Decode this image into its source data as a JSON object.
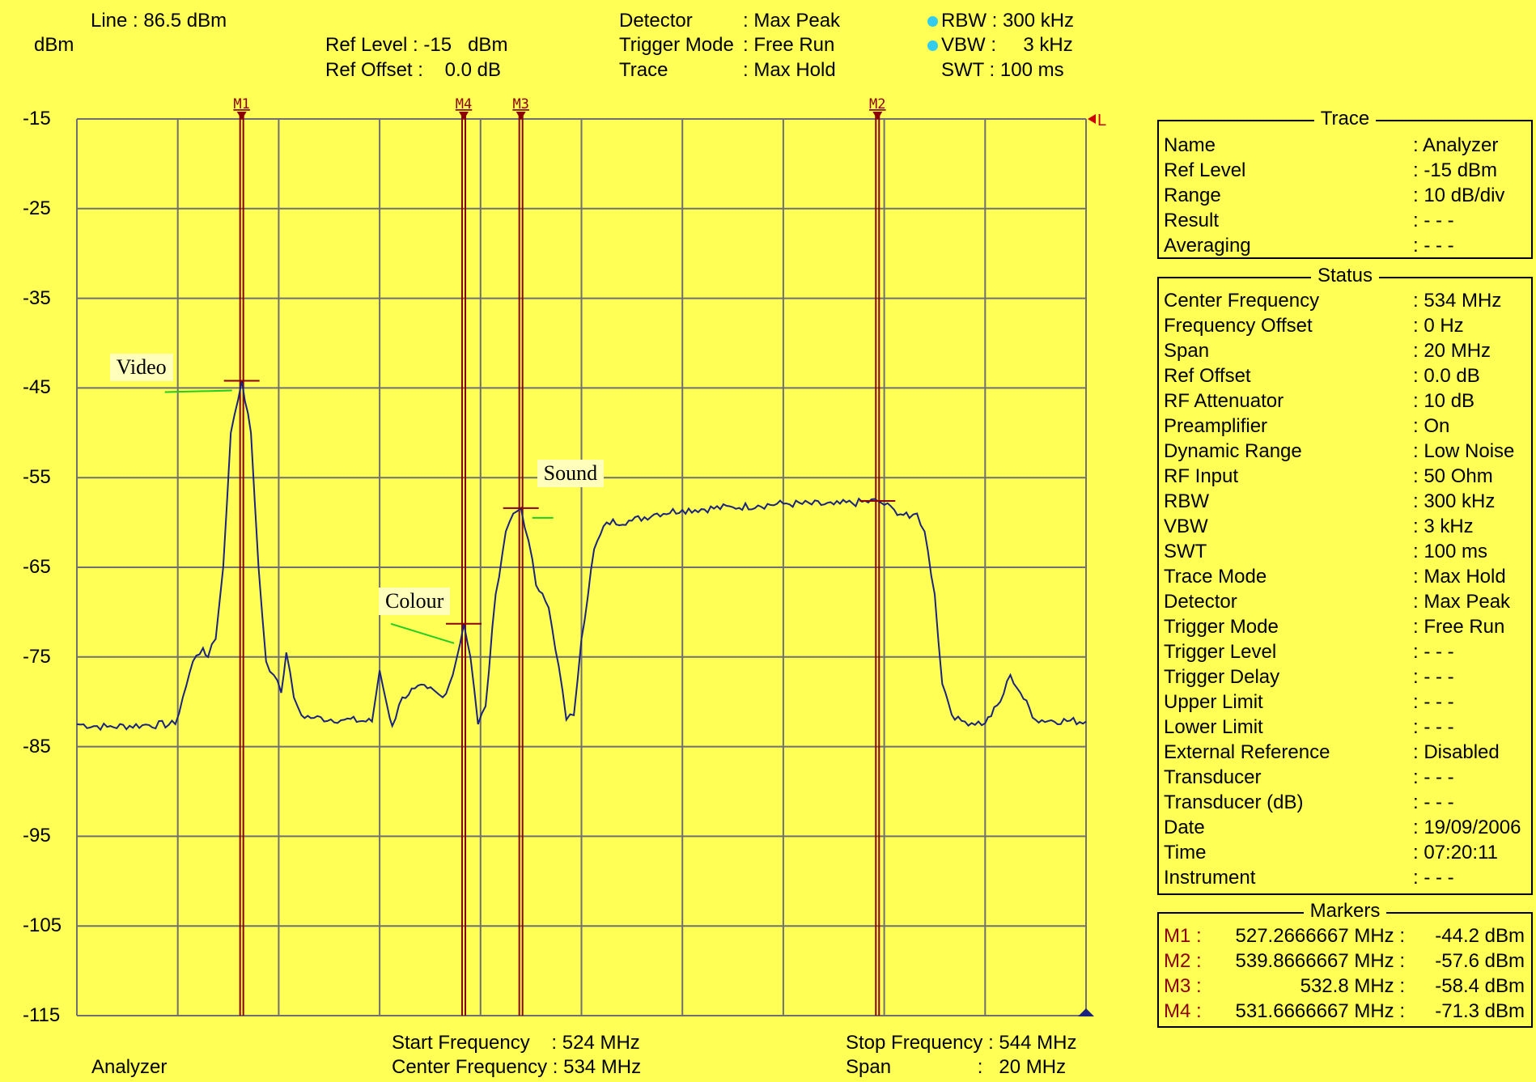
{
  "header": {
    "line_text": "Line : 86.5 dBm",
    "unit_label": "dBm",
    "ref_level": "Ref Level : -15   dBm",
    "ref_offset": "Ref Offset :    0.0 dB",
    "detector_key": "Detector",
    "detector_val": ": Max Peak",
    "trigger_key": "Trigger Mode",
    "trigger_val": ": Free Run",
    "trace_key": "Trace",
    "trace_val": ": Max Hold",
    "rbw": "RBW : 300 kHz",
    "vbw": "VBW :     3 kHz",
    "swt": "SWT : 100 ms"
  },
  "footer": {
    "analyzer_label": "Analyzer",
    "start_freq": "Start Frequency    : 524 MHz",
    "center_freq": "Center Frequency : 534 MHz",
    "stop_freq": "Stop Frequency : 544 MHz",
    "span": "Span                :   20 MHz"
  },
  "trace_panel": {
    "title": "Trace",
    "rows": [
      {
        "k": "Name",
        "v": ": Analyzer"
      },
      {
        "k": "Ref Level",
        "v": ":  -15     dBm"
      },
      {
        "k": "Range",
        "v": ": 10 dB/div"
      },
      {
        "k": "Result",
        "v": ": - - -"
      },
      {
        "k": "Averaging",
        "v": ": - - -"
      }
    ]
  },
  "status_panel": {
    "title": "Status",
    "rows": [
      {
        "k": "Center Frequency",
        "v": ": 534     MHz"
      },
      {
        "k": "Frequency Offset",
        "v": ":    0        Hz"
      },
      {
        "k": "Span",
        "v": ":   20      MHz"
      },
      {
        "k": "Ref Offset",
        "v": ":    0.0    dB"
      },
      {
        "k": "RF Attenuator",
        "v": ":   10       dB"
      },
      {
        "k": "Preamplifier",
        "v": ": On"
      },
      {
        "k": "Dynamic Range",
        "v": ": Low Noise"
      },
      {
        "k": "RF Input",
        "v": ":   50      Ohm"
      },
      {
        "k": "RBW",
        "v": ": 300      kHz"
      },
      {
        "k": "VBW",
        "v": ":     3      kHz"
      },
      {
        "k": "SWT",
        "v": ": 100      ms"
      },
      {
        "k": "Trace Mode",
        "v": ": Max Hold"
      },
      {
        "k": "Detector",
        "v": ": Max Peak"
      },
      {
        "k": "Trigger Mode",
        "v": ": Free Run"
      },
      {
        "k": "Trigger Level",
        "v": ": - - -"
      },
      {
        "k": "Trigger Delay",
        "v": ": - - -"
      },
      {
        "k": "Upper Limit",
        "v": ": - - -"
      },
      {
        "k": "Lower Limit",
        "v": ": - - -"
      },
      {
        "k": "External Reference",
        "v": ": Disabled"
      },
      {
        "k": "Transducer",
        "v": ": - - -"
      },
      {
        "k": "Transducer (dB)",
        "v": ": - - -"
      },
      {
        "k": "Date",
        "v": ": 19/09/2006"
      },
      {
        "k": "Time",
        "v": ": 07:20:11"
      },
      {
        "k": "Instrument",
        "v": ": - - -"
      }
    ]
  },
  "markers_panel": {
    "title": "Markers",
    "rows": [
      {
        "m": "M1 :",
        "f": "527.2666667 MHz :",
        "l": "-44.2 dBm"
      },
      {
        "m": "M2 :",
        "f": "539.8666667 MHz :",
        "l": "-57.6 dBm"
      },
      {
        "m": "M3 :",
        "f": "532.8 MHz :",
        "l": "-58.4 dBm"
      },
      {
        "m": "M4 :",
        "f": "531.6666667 MHz :",
        "l": "-71.3 dBm"
      }
    ]
  },
  "colors": {
    "background": "#ffff55",
    "trace": "#1a237e",
    "marker": "#8b0000",
    "grid": "#707070",
    "bw_dot": "#33ccee"
  },
  "chart_data": {
    "type": "line",
    "xlim": [
      524,
      544
    ],
    "ylim": [
      -115,
      -15
    ],
    "y_ticks": [
      -15,
      -25,
      -35,
      -45,
      -55,
      -65,
      -75,
      -85,
      -95,
      -105,
      -115
    ],
    "xlabel": "",
    "ylabel": "dBm",
    "grid": true,
    "series": [
      {
        "name": "Analyzer",
        "x": [
          524,
          524.6,
          525.3,
          525.95,
          526.1,
          526.3,
          526.5,
          526.6,
          526.75,
          526.9,
          527.05,
          527.27,
          527.45,
          527.6,
          527.75,
          527.9,
          528.05,
          528.15,
          528.3,
          528.45,
          528.7,
          529.3,
          529.85,
          530.0,
          530.15,
          530.25,
          530.45,
          530.7,
          530.95,
          531.25,
          531.45,
          531.67,
          531.8,
          531.95,
          532.1,
          532.3,
          532.5,
          532.65,
          532.8,
          532.95,
          533.1,
          533.35,
          533.55,
          533.7,
          533.85,
          534.0,
          534.25,
          534.5,
          535.0,
          535.5,
          536.0,
          537.0,
          537.5,
          538.0,
          539.0,
          539.87,
          540.2,
          540.5,
          540.65,
          540.8,
          541.0,
          541.15,
          541.4,
          541.6,
          542.0,
          542.3,
          542.5,
          542.7,
          543.0,
          544.0
        ],
        "y": [
          -82.5,
          -82.8,
          -82.6,
          -82.5,
          -79.5,
          -75.5,
          -74.0,
          -75.0,
          -73.0,
          -65.0,
          -50.0,
          -44.2,
          -50.0,
          -65.0,
          -75.5,
          -77.0,
          -79.0,
          -74.5,
          -79.5,
          -81.5,
          -81.8,
          -82.0,
          -82.2,
          -76.5,
          -80.5,
          -82.7,
          -79.5,
          -78.5,
          -78.5,
          -79.5,
          -77.0,
          -71.3,
          -75.0,
          -82.5,
          -80.5,
          -68.0,
          -61.0,
          -59.0,
          -58.4,
          -62.0,
          -67.0,
          -69.5,
          -76.0,
          -82.0,
          -81.5,
          -73.0,
          -63.0,
          -60.0,
          -59.8,
          -59.0,
          -58.6,
          -58.3,
          -58.1,
          -57.9,
          -58.0,
          -57.6,
          -58.6,
          -59.5,
          -59.0,
          -61.0,
          -68.0,
          -78.0,
          -82.0,
          -82.2,
          -82.4,
          -80.0,
          -77.0,
          -79.0,
          -82.0,
          -82.2
        ]
      }
    ],
    "markers": [
      {
        "name": "M1",
        "x": 527.2666667,
        "y": -44.2
      },
      {
        "name": "M2",
        "x": 539.8666667,
        "y": -57.6
      },
      {
        "name": "M3",
        "x": 532.8,
        "y": -58.4
      },
      {
        "name": "M4",
        "x": 531.6666667,
        "y": -71.3
      }
    ],
    "annotations": [
      {
        "text": "Video",
        "x": 527.2666667,
        "y": -44.2
      },
      {
        "text": "Sound",
        "x": 532.8,
        "y": -58.4
      },
      {
        "text": "Colour",
        "x": 531.6666667,
        "y": -71.3
      }
    ]
  }
}
